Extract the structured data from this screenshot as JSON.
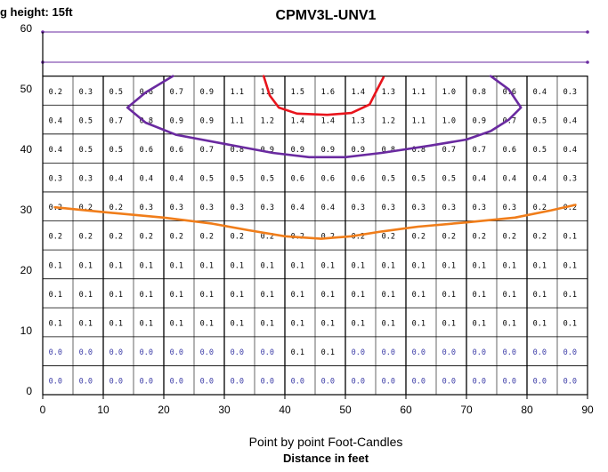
{
  "chart_data": {
    "type": "heatmap",
    "title": "CPMV3L-UNV1",
    "mounting_label": "g height: 15ft",
    "caption": "Point by point Foot-Candles",
    "xlabel": "Distance in feet",
    "xlim": [
      0,
      90
    ],
    "ylim": [
      0,
      60
    ],
    "x_ticks": [
      "0",
      "10",
      "20",
      "30",
      "40",
      "50",
      "60",
      "70",
      "80",
      "90"
    ],
    "y_ticks": [
      "0",
      "10",
      "20",
      "30",
      "40",
      "50",
      "60"
    ],
    "grid": true,
    "colors": {
      "grid": "#000000",
      "value_text": "#000000",
      "zero_text": "#3a3aa6",
      "curve_inner": "#e8141c",
      "curve_middle": "#6a2aa0",
      "curve_outer": "#f07d1a"
    },
    "grid_rows": [
      [
        "0.2",
        "0.3",
        "0.5",
        "0.6",
        "0.7",
        "0.9",
        "1.1",
        "1.3",
        "1.5",
        "1.6",
        "1.4",
        "1.3",
        "1.1",
        "1.0",
        "0.8",
        "0.6",
        "0.4",
        "0.3"
      ],
      [
        "0.4",
        "0.5",
        "0.7",
        "0.8",
        "0.9",
        "0.9",
        "1.1",
        "1.2",
        "1.4",
        "1.4",
        "1.3",
        "1.2",
        "1.1",
        "1.0",
        "0.9",
        "0.7",
        "0.5",
        "0.4"
      ],
      [
        "0.4",
        "0.5",
        "0.5",
        "0.6",
        "0.6",
        "0.7",
        "0.8",
        "0.9",
        "0.9",
        "0.9",
        "0.9",
        "0.8",
        "0.8",
        "0.7",
        "0.7",
        "0.6",
        "0.5",
        "0.4"
      ],
      [
        "0.3",
        "0.3",
        "0.4",
        "0.4",
        "0.4",
        "0.5",
        "0.5",
        "0.5",
        "0.6",
        "0.6",
        "0.6",
        "0.5",
        "0.5",
        "0.5",
        "0.4",
        "0.4",
        "0.4",
        "0.3"
      ],
      [
        "0.2",
        "0.2",
        "0.2",
        "0.3",
        "0.3",
        "0.3",
        "0.3",
        "0.3",
        "0.4",
        "0.4",
        "0.3",
        "0.3",
        "0.3",
        "0.3",
        "0.3",
        "0.3",
        "0.2",
        "0.2"
      ],
      [
        "0.2",
        "0.2",
        "0.2",
        "0.2",
        "0.2",
        "0.2",
        "0.2",
        "0.2",
        "0.2",
        "0.2",
        "0.2",
        "0.2",
        "0.2",
        "0.2",
        "0.2",
        "0.2",
        "0.2",
        "0.1"
      ],
      [
        "0.1",
        "0.1",
        "0.1",
        "0.1",
        "0.1",
        "0.1",
        "0.1",
        "0.1",
        "0.1",
        "0.1",
        "0.1",
        "0.1",
        "0.1",
        "0.1",
        "0.1",
        "0.1",
        "0.1",
        "0.1"
      ],
      [
        "0.1",
        "0.1",
        "0.1",
        "0.1",
        "0.1",
        "0.1",
        "0.1",
        "0.1",
        "0.1",
        "0.1",
        "0.1",
        "0.1",
        "0.1",
        "0.1",
        "0.1",
        "0.1",
        "0.1",
        "0.1"
      ],
      [
        "0.1",
        "0.1",
        "0.1",
        "0.1",
        "0.1",
        "0.1",
        "0.1",
        "0.1",
        "0.1",
        "0.1",
        "0.1",
        "0.1",
        "0.1",
        "0.1",
        "0.1",
        "0.1",
        "0.1",
        "0.1"
      ],
      [
        "0.0",
        "0.0",
        "0.0",
        "0.0",
        "0.0",
        "0.0",
        "0.0",
        "0.0",
        "0.1",
        "0.1",
        "0.0",
        "0.0",
        "0.0",
        "0.0",
        "0.0",
        "0.0",
        "0.0",
        "0.0"
      ],
      [
        "0.0",
        "0.0",
        "0.0",
        "0.0",
        "0.0",
        "0.0",
        "0.0",
        "0.0",
        "0.0",
        "0.0",
        "0.0",
        "0.0",
        "0.0",
        "0.0",
        "0.0",
        "0.0",
        "0.0",
        "0.0"
      ]
    ],
    "contours": [
      {
        "color_key": "curve_inner",
        "points": [
          [
            36.5,
            52.7
          ],
          [
            37.5,
            49.5
          ],
          [
            39,
            47.5
          ],
          [
            42,
            46.5
          ],
          [
            47,
            46.3
          ],
          [
            51,
            46.6
          ],
          [
            54,
            48
          ],
          [
            55,
            50
          ],
          [
            56.3,
            52.5
          ]
        ]
      },
      {
        "color_key": "curve_middle",
        "points": [
          [
            21.5,
            52.7
          ],
          [
            17,
            50
          ],
          [
            14,
            47.5
          ],
          [
            17,
            45
          ],
          [
            22,
            43
          ],
          [
            30,
            41.5
          ],
          [
            38,
            40
          ],
          [
            44,
            39.3
          ],
          [
            50,
            39.3
          ],
          [
            56,
            40
          ],
          [
            64,
            41.2
          ],
          [
            70,
            42.2
          ],
          [
            74,
            43.6
          ],
          [
            77,
            45.5
          ],
          [
            79,
            47.5
          ],
          [
            77,
            50.5
          ],
          [
            74,
            52.7
          ]
        ]
      },
      {
        "color_key": "curve_outer",
        "points": [
          [
            2,
            31
          ],
          [
            10,
            30.2
          ],
          [
            20,
            29.3
          ],
          [
            28,
            28.3
          ],
          [
            34,
            27.2
          ],
          [
            40,
            26.2
          ],
          [
            46,
            25.8
          ],
          [
            51,
            26.2
          ],
          [
            56,
            27
          ],
          [
            62,
            27.8
          ],
          [
            70,
            28.5
          ],
          [
            78,
            29.3
          ],
          [
            84,
            30.5
          ],
          [
            88,
            31.4
          ]
        ]
      }
    ]
  }
}
